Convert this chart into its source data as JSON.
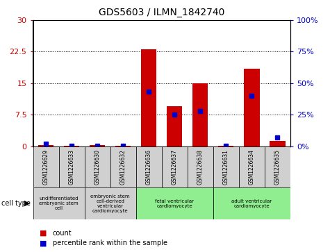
{
  "title": "GDS5603 / ILMN_1842740",
  "samples": [
    "GSM1226629",
    "GSM1226633",
    "GSM1226630",
    "GSM1226632",
    "GSM1226636",
    "GSM1226637",
    "GSM1226638",
    "GSM1226631",
    "GSM1226634",
    "GSM1226635"
  ],
  "counts": [
    0.3,
    0.1,
    0.2,
    0.05,
    23.0,
    9.5,
    15.0,
    0.1,
    18.5,
    1.2
  ],
  "percentiles": [
    2,
    0.5,
    0.5,
    0.5,
    43,
    25,
    28,
    0.5,
    40,
    7
  ],
  "ylim_left": [
    0,
    30
  ],
  "ylim_right": [
    0,
    100
  ],
  "yticks_left": [
    0,
    7.5,
    15,
    22.5,
    30
  ],
  "yticks_right": [
    0,
    25,
    50,
    75,
    100
  ],
  "yticklabels_left": [
    "0",
    "7.5",
    "15",
    "22.5",
    "30"
  ],
  "yticklabels_right": [
    "0%",
    "25%",
    "50%",
    "75%",
    "100%"
  ],
  "bar_color": "#cc0000",
  "percentile_color": "#0000cc",
  "bg_color_gray": "#d0d0d0",
  "bg_color_green": "#90ee90",
  "cell_type_groups": [
    {
      "label": "undifferentiated\nembryonic stem\ncell",
      "indices": [
        0,
        1
      ],
      "color": "#d0d0d0"
    },
    {
      "label": "embryonic stem\ncell-derived\nventricular\ncardiomyocyte",
      "indices": [
        2,
        3
      ],
      "color": "#d0d0d0"
    },
    {
      "label": "fetal ventricular\ncardiomyocyte",
      "indices": [
        4,
        5,
        6
      ],
      "color": "#90ee90"
    },
    {
      "label": "adult ventricular\ncardiomyocyte",
      "indices": [
        7,
        8,
        9
      ],
      "color": "#90ee90"
    }
  ],
  "legend_items": [
    {
      "color": "#cc0000",
      "label": "count"
    },
    {
      "color": "#0000cc",
      "label": "percentile rank within the sample"
    }
  ],
  "cell_type_label": "cell type",
  "bar_width": 0.6
}
